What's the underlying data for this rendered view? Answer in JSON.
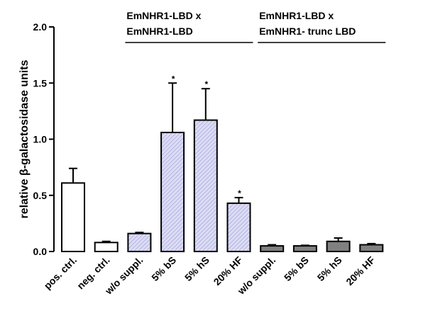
{
  "chart_data": {
    "type": "bar",
    "ylabel": "relative β-galactosidase units",
    "ylim": [
      0,
      2.0
    ],
    "yticks": [
      "0.0",
      "0.5",
      "1.0",
      "1.5",
      "2.0"
    ],
    "ytick_values": [
      0,
      0.5,
      1.0,
      1.5,
      2.0
    ],
    "categories": [
      "pos. ctrl.",
      "neg. ctrl.",
      "w/o suppl.",
      "5% bS",
      "5% hS",
      "20% HF",
      "w/o suppl.",
      "5% bS",
      "5% hS",
      "20% HF"
    ],
    "values": [
      0.61,
      0.08,
      0.16,
      1.06,
      1.17,
      0.43,
      0.05,
      0.05,
      0.09,
      0.06
    ],
    "errors": [
      0.13,
      0.01,
      0.01,
      0.44,
      0.28,
      0.05,
      0.01,
      0.005,
      0.03,
      0.01
    ],
    "significance": [
      "",
      "",
      "",
      "*",
      "*",
      "*",
      "",
      "",
      "",
      ""
    ],
    "bar_styles": [
      "white",
      "white",
      "hatched",
      "hatched",
      "hatched",
      "hatched",
      "gray",
      "gray",
      "gray",
      "gray"
    ],
    "groups": [
      {
        "line1": "EmNHR1-LBD x",
        "line2": "EmNHR1-LBD",
        "first": 2,
        "last": 5
      },
      {
        "line1": "EmNHR1-LBD x",
        "line2": "EmNHR1- trunc LBD",
        "first": 6,
        "last": 9
      }
    ],
    "colors": {
      "white": "#ffffff",
      "hatched": "#dcdcf3",
      "hatch_line": "#8f8fd6",
      "gray": "#808080",
      "axis": "#000000"
    }
  }
}
